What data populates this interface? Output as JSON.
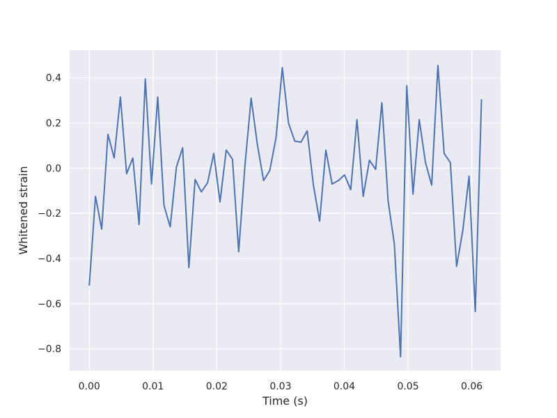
{
  "chart_data": {
    "type": "line",
    "title": "",
    "xlabel": "Time (s)",
    "ylabel": "Whitened strain",
    "xlim": [
      -0.00308,
      0.06452
    ],
    "ylim": [
      -0.8965,
      0.5225
    ],
    "xticks": [
      0.0,
      0.01,
      0.02,
      0.03,
      0.04,
      0.05,
      0.06
    ],
    "xtick_labels": [
      "0.00",
      "0.01",
      "0.02",
      "0.03",
      "0.04",
      "0.05",
      "0.06"
    ],
    "yticks": [
      -0.8,
      -0.6,
      -0.4,
      -0.2,
      0.0,
      0.2,
      0.4
    ],
    "ytick_labels": [
      "−0.8",
      "−0.6",
      "−0.4",
      "−0.2",
      "0.0",
      "0.2",
      "0.4"
    ],
    "grid": true,
    "style": {
      "background": "#eaeaf2",
      "grid_color": "#ffffff",
      "line_color": "#4c72b0"
    },
    "series": [
      {
        "x": [
          0.0,
          0.000977,
          0.001953,
          0.00293,
          0.003906,
          0.004883,
          0.005859,
          0.006836,
          0.007813,
          0.008789,
          0.009766,
          0.010742,
          0.011719,
          0.012695,
          0.013672,
          0.014648,
          0.015625,
          0.016602,
          0.017578,
          0.018555,
          0.019531,
          0.020508,
          0.021484,
          0.022461,
          0.023438,
          0.024414,
          0.025391,
          0.026367,
          0.027344,
          0.02832,
          0.029297,
          0.030273,
          0.03125,
          0.032227,
          0.033203,
          0.03418,
          0.035156,
          0.036133,
          0.037109,
          0.038086,
          0.039063,
          0.040039,
          0.041016,
          0.041992,
          0.042969,
          0.043945,
          0.044922,
          0.045898,
          0.046875,
          0.047852,
          0.048828,
          0.049805,
          0.050781,
          0.051758,
          0.052734,
          0.053711,
          0.054688,
          0.055664,
          0.056641,
          0.057617,
          0.058594,
          0.05957,
          0.060547,
          0.061523
        ],
        "y": [
          -0.52,
          -0.125,
          -0.27,
          0.15,
          0.045,
          0.315,
          -0.025,
          0.045,
          -0.25,
          0.395,
          -0.07,
          0.315,
          -0.165,
          -0.26,
          0.005,
          0.09,
          -0.44,
          -0.05,
          -0.105,
          -0.065,
          0.065,
          -0.15,
          0.08,
          0.04,
          -0.37,
          0.01,
          0.31,
          0.105,
          -0.055,
          -0.01,
          0.135,
          0.445,
          0.2,
          0.12,
          0.115,
          0.165,
          -0.075,
          -0.235,
          0.08,
          -0.07,
          -0.055,
          -0.03,
          -0.095,
          0.215,
          -0.125,
          0.035,
          -0.005,
          0.29,
          -0.145,
          -0.335,
          -0.835,
          0.365,
          -0.115,
          0.215,
          0.025,
          -0.075,
          0.455,
          0.065,
          0.025,
          -0.435,
          -0.275,
          -0.035,
          -0.635,
          0.305
        ]
      }
    ]
  }
}
